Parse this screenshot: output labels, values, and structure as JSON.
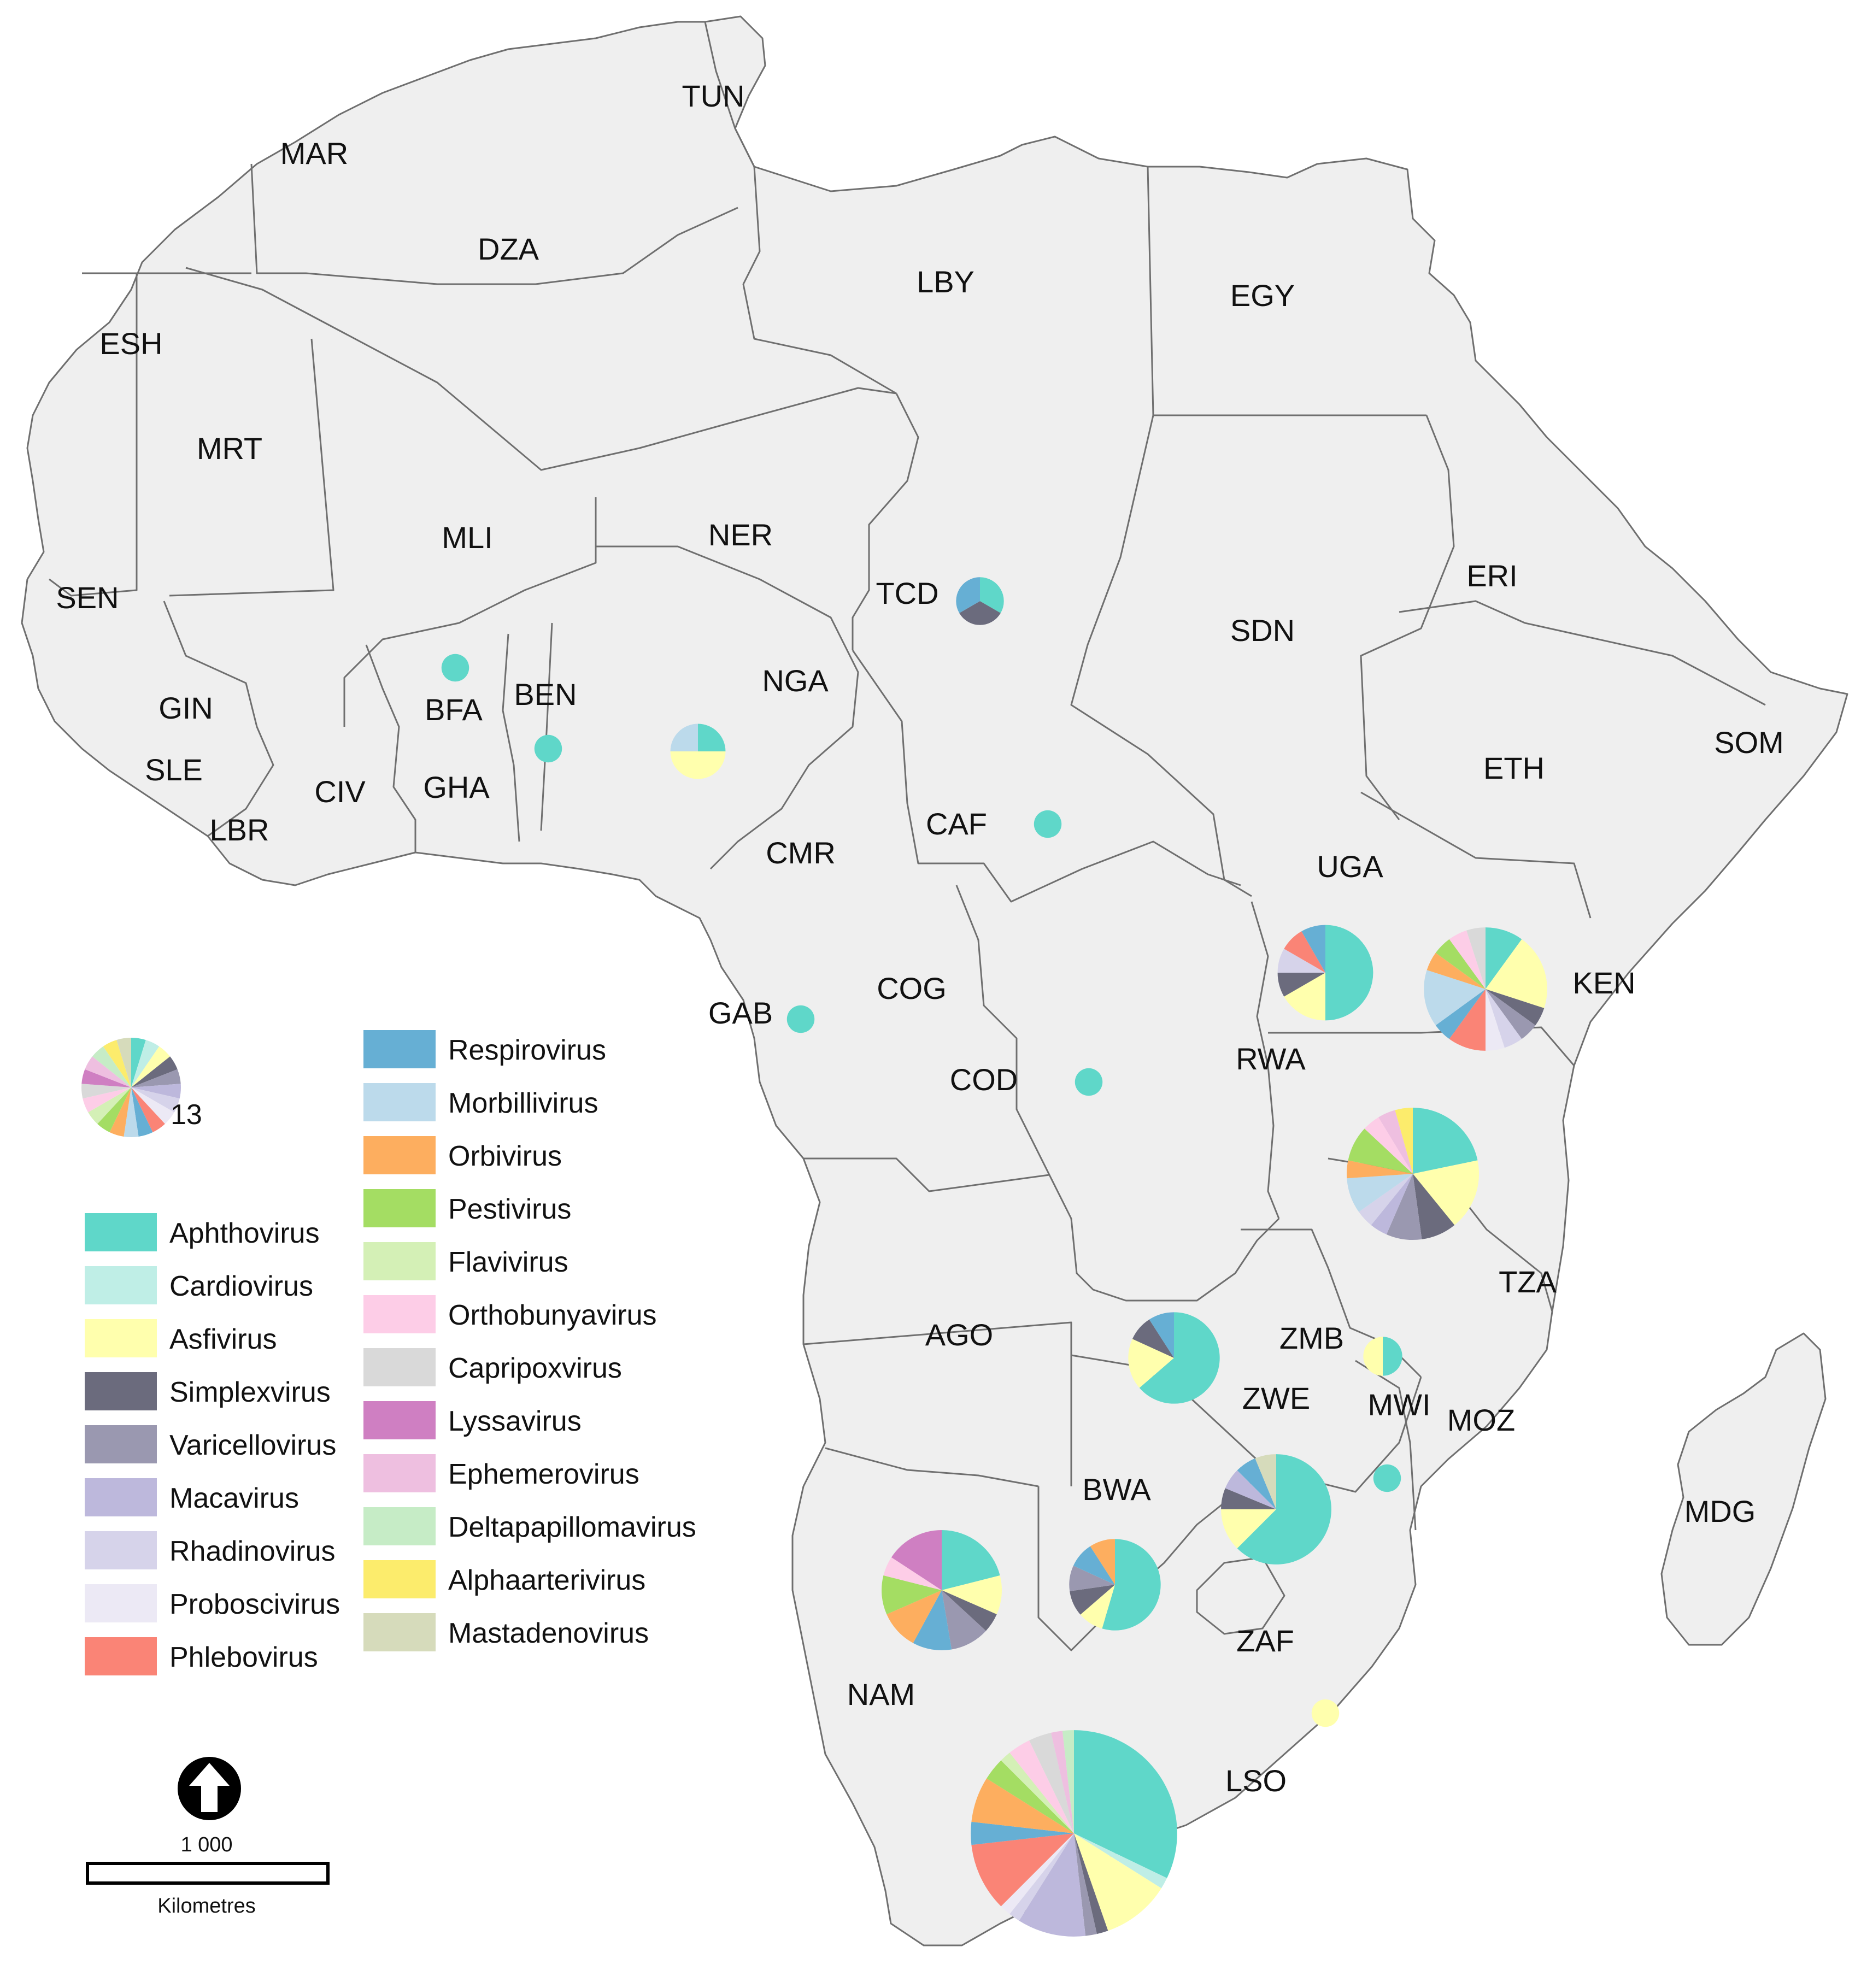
{
  "countries": [
    "TUN",
    "MAR",
    "DZA",
    "LBY",
    "EGY",
    "ESH",
    "MRT",
    "MLI",
    "NER",
    "TCD",
    "SDN",
    "ERI",
    "SEN",
    "BFA",
    "BEN",
    "NGA",
    "GIN",
    "SLE",
    "LBR",
    "CIV",
    "GHA",
    "CAF",
    "CMR",
    "ETH",
    "SOM",
    "UGA",
    "KEN",
    "GAB",
    "COG",
    "COD",
    "RWA",
    "TZA",
    "AGO",
    "ZMB",
    "ZWE",
    "MWI",
    "MOZ",
    "BWA",
    "NAM",
    "ZAF",
    "LSO",
    "MDG"
  ],
  "legend": {
    "genera": [
      {
        "name": "Aphthovirus",
        "color": "#5fd7c9"
      },
      {
        "name": "Cardiovirus",
        "color": "#bfeee6"
      },
      {
        "name": "Asfivirus",
        "color": "#ffffad"
      },
      {
        "name": "Simplexvirus",
        "color": "#6b6b7d"
      },
      {
        "name": "Varicellovirus",
        "color": "#9a98b0"
      },
      {
        "name": "Macavirus",
        "color": "#bdb8dc"
      },
      {
        "name": "Rhadinovirus",
        "color": "#d6d3ea"
      },
      {
        "name": "Proboscivirus",
        "color": "#ece9f5"
      },
      {
        "name": "Phlebovirus",
        "color": "#fa8476"
      },
      {
        "name": "Respirovirus",
        "color": "#66afd4"
      },
      {
        "name": "Morbillivirus",
        "color": "#bcdaeb"
      },
      {
        "name": "Orbivirus",
        "color": "#fdae5f"
      },
      {
        "name": "Pestivirus",
        "color": "#a4dd63"
      },
      {
        "name": "Flavivirus",
        "color": "#d4f0b6"
      },
      {
        "name": "Orthobunyavirus",
        "color": "#fdcde7"
      },
      {
        "name": "Capripoxvirus",
        "color": "#d9d9d9"
      },
      {
        "name": "Lyssavirus",
        "color": "#cf7fc2"
      },
      {
        "name": "Ephemerovirus",
        "color": "#eebfe0"
      },
      {
        "name": "Deltapapillomavirus",
        "color": "#c6ecc6"
      },
      {
        "name": "Alphaarterivirus",
        "color": "#fcec6c"
      },
      {
        "name": "Mastadenovirus",
        "color": "#d6dbbb"
      }
    ],
    "size_reference_label": "13"
  },
  "pies": [
    {
      "country": "TCD",
      "counts": {
        "Aphthovirus": 1,
        "Simplexvirus": 1,
        "Respirovirus": 1
      }
    },
    {
      "country": "BFA",
      "counts": {
        "Aphthovirus": 1
      }
    },
    {
      "country": "BEN",
      "counts": {
        "Aphthovirus": 1
      }
    },
    {
      "country": "NGA",
      "counts": {
        "Aphthovirus": 1,
        "Asfivirus": 2,
        "Morbillivirus": 1
      }
    },
    {
      "country": "CAF",
      "counts": {
        "Aphthovirus": 1
      }
    },
    {
      "country": "GAB",
      "counts": {
        "Aphthovirus": 1
      }
    },
    {
      "country": "COD",
      "counts": {
        "Aphthovirus": 1
      }
    },
    {
      "country": "UGA",
      "counts": {
        "Aphthovirus": 6,
        "Asfivirus": 2,
        "Simplexvirus": 1,
        "Rhadinovirus": 1,
        "Phlebovirus": 1,
        "Respirovirus": 1
      }
    },
    {
      "country": "KEN",
      "counts": {
        "Aphthovirus": 2,
        "Asfivirus": 4,
        "Simplexvirus": 1,
        "Varicellovirus": 1,
        "Rhadinovirus": 1,
        "Proboscivirus": 1,
        "Phlebovirus": 2,
        "Respirovirus": 1,
        "Morbillivirus": 3,
        "Orbivirus": 1,
        "Pestivirus": 1,
        "Orthobunyavirus": 1,
        "Capripoxvirus": 1
      }
    },
    {
      "country": "TZA",
      "counts": {
        "Aphthovirus": 5,
        "Asfivirus": 4,
        "Simplexvirus": 2,
        "Varicellovirus": 2,
        "Macavirus": 1,
        "Rhadinovirus": 1,
        "Morbillivirus": 2,
        "Orbivirus": 1,
        "Pestivirus": 2,
        "Orthobunyavirus": 1,
        "Ephemerovirus": 1,
        "Alphaarterivirus": 1
      }
    },
    {
      "country": "ZMB",
      "counts": {
        "Aphthovirus": 7,
        "Asfivirus": 2,
        "Simplexvirus": 1,
        "Respirovirus": 1
      }
    },
    {
      "country": "MWI",
      "counts": {
        "Aphthovirus": 1,
        "Asfivirus": 1
      }
    },
    {
      "country": "MOZ",
      "counts": {
        "Aphthovirus": 1
      }
    },
    {
      "country": "ZWE",
      "counts": {
        "Aphthovirus": 10,
        "Asfivirus": 2,
        "Simplexvirus": 1,
        "Macavirus": 1,
        "Respirovirus": 1,
        "Mastadenovirus": 1
      }
    },
    {
      "country": "BWA",
      "counts": {
        "Aphthovirus": 6,
        "Asfivirus": 1,
        "Simplexvirus": 1,
        "Varicellovirus": 1,
        "Respirovirus": 1,
        "Orbivirus": 1
      }
    },
    {
      "country": "NAM",
      "counts": {
        "Aphthovirus": 4,
        "Asfivirus": 2,
        "Simplexvirus": 1,
        "Varicellovirus": 2,
        "Respirovirus": 2,
        "Orbivirus": 2,
        "Pestivirus": 2,
        "Orthobunyavirus": 1,
        "Lyssavirus": 3
      }
    },
    {
      "country": "ZAF",
      "counts": {
        "Asfivirus": 1
      }
    },
    {
      "country": "LSO",
      "counts": {
        "Aphthovirus": 18,
        "Cardiovirus": 1,
        "Asfivirus": 6,
        "Simplexvirus": 1,
        "Varicellovirus": 1,
        "Macavirus": 6,
        "Rhadinovirus": 1,
        "Proboscivirus": 1,
        "Phlebovirus": 6,
        "Respirovirus": 2,
        "Orbivirus": 4,
        "Pestivirus": 2,
        "Flavivirus": 1,
        "Orthobunyavirus": 2,
        "Capripoxvirus": 2,
        "Ephemerovirus": 1,
        "Deltapapillomavirus": 1
      }
    }
  ],
  "scalebar": {
    "value": "1 000",
    "unit": "Kilometres"
  }
}
